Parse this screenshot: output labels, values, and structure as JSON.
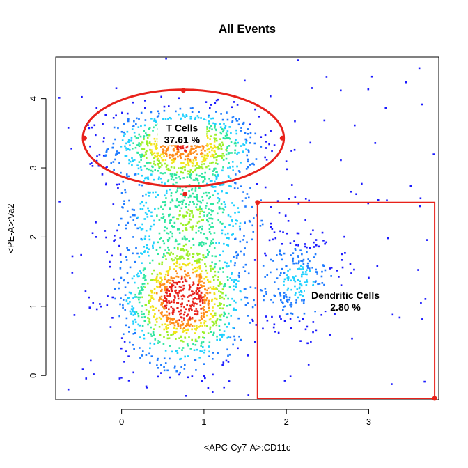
{
  "chart_data": {
    "type": "scatter",
    "title": "All Events",
    "xlabel": "<APC-Cy7-A>:CD11c",
    "ylabel": "<PE-A>:Va2",
    "xlim": [
      -0.8,
      3.85
    ],
    "ylim": [
      -0.35,
      4.6
    ],
    "x_ticks": [
      0,
      1,
      2,
      3
    ],
    "y_ticks": [
      0,
      1,
      2,
      3,
      4
    ],
    "density_colormap": [
      "#1a1aff",
      "#1e7bff",
      "#1ed0ff",
      "#2fe6a0",
      "#9cf02a",
      "#f2e419",
      "#ff8c1a",
      "#e8211a"
    ],
    "populations": [
      {
        "center": [
          0.75,
          3.3
        ],
        "spread": [
          0.45,
          0.28
        ]
      },
      {
        "center": [
          0.75,
          1.1
        ],
        "spread": [
          0.38,
          0.48
        ]
      },
      {
        "center": [
          0.85,
          2.35
        ],
        "spread": [
          0.5,
          0.35
        ]
      },
      {
        "center": [
          2.15,
          1.35
        ],
        "spread": [
          0.28,
          0.35
        ]
      }
    ],
    "gates": [
      {
        "shape": "ellipse",
        "name": "T Cells",
        "percent": "37.61 %",
        "center": [
          0.75,
          3.43
        ],
        "radii": [
          1.22,
          0.7
        ],
        "color": "#e8211a",
        "handles": [
          [
            -0.45,
            3.43
          ],
          [
            0.75,
            4.12
          ],
          [
            0.77,
            2.62
          ],
          [
            1.95,
            3.43
          ]
        ]
      },
      {
        "shape": "rectangle",
        "name": "Dendritic Cells",
        "percent": "2.80 %",
        "x_range": [
          1.65,
          3.8
        ],
        "y_range": [
          -0.33,
          2.5
        ],
        "color": "#e8211a",
        "handles": [
          [
            1.65,
            2.5
          ],
          [
            3.8,
            -0.33
          ]
        ]
      }
    ]
  }
}
